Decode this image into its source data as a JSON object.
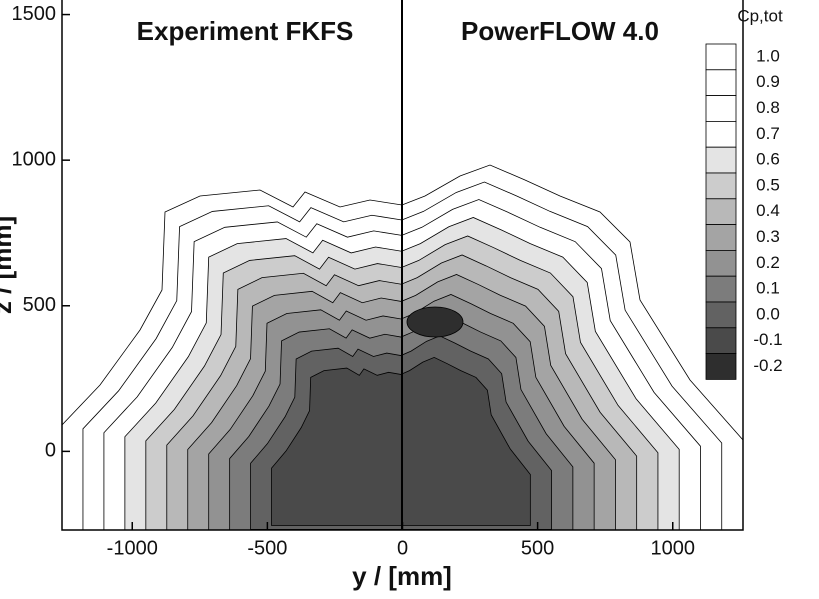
{
  "chart_data": {
    "type": "contour",
    "panel_titles": [
      "Experiment FKFS",
      "PowerFLOW 4.0"
    ],
    "x_label": "y / [mm]",
    "y_label": "z / [mm]",
    "xlim": [
      -1260,
      1260
    ],
    "ylim": [
      -270,
      1550
    ],
    "xticks": [
      -1000,
      -500,
      0,
      500,
      1000
    ],
    "yticks": [
      0,
      500,
      1000,
      1500
    ],
    "colorbar": {
      "title": "Cp,tot",
      "levels": [
        {
          "value": 1.0,
          "label": "1.0"
        },
        0.9,
        0.8,
        0.7,
        0.6,
        0.5,
        0.4,
        0.3,
        0.2,
        0.1,
        {
          "value": 0.0,
          "label": "0.0"
        },
        -0.1,
        -0.2
      ],
      "colors": [
        "#ffffff",
        "#ffffff",
        "#ffffff",
        "#ffffff",
        "#e4e4e4",
        "#cccccc",
        "#b8b8b8",
        "#a4a4a4",
        "#929292",
        "#7c7c7c",
        "#626262",
        "#4a4a4a",
        "#2e2e2e"
      ]
    }
  }
}
